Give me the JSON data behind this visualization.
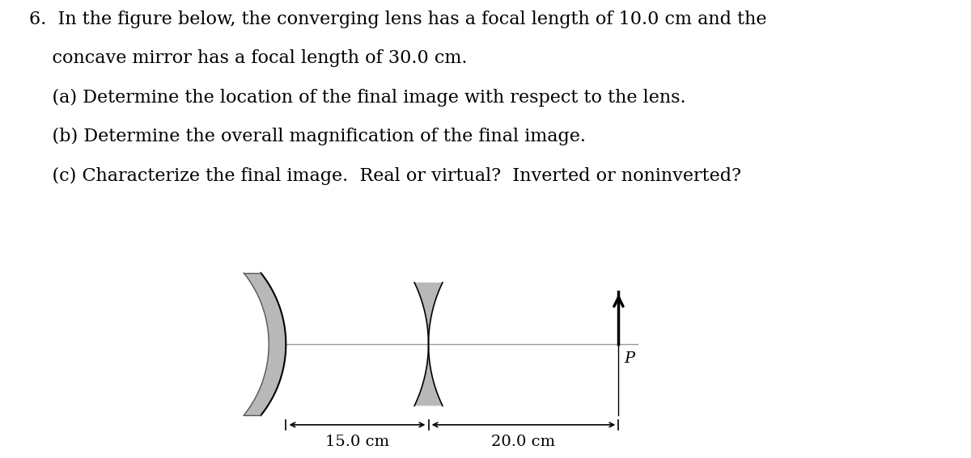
{
  "background_color": "#ffffff",
  "axis_line_color": "#999999",
  "optical_element_color": "#b8b8b8",
  "optical_element_edge": "#555555",
  "arrow_color": "#000000",
  "dim_label_15": "15.0 cm",
  "dim_label_20": "20.0 cm",
  "label_P": "P",
  "text_line1": "6.  In the figure below, the converging lens has a focal length of 10.0 cm and the",
  "text_line2": "    concave mirror has a focal length of 30.0 cm.",
  "text_line3": "    (a) Determine the location of the final image with respect to the lens.",
  "text_line4": "    (b) Determine the overall magnification of the final image.",
  "text_line5": "    (c) Characterize the final image.  Real or virtual?  Inverted or noninverted?",
  "text_fontsize": 16,
  "label_fontsize": 14,
  "dim_fontsize": 14
}
